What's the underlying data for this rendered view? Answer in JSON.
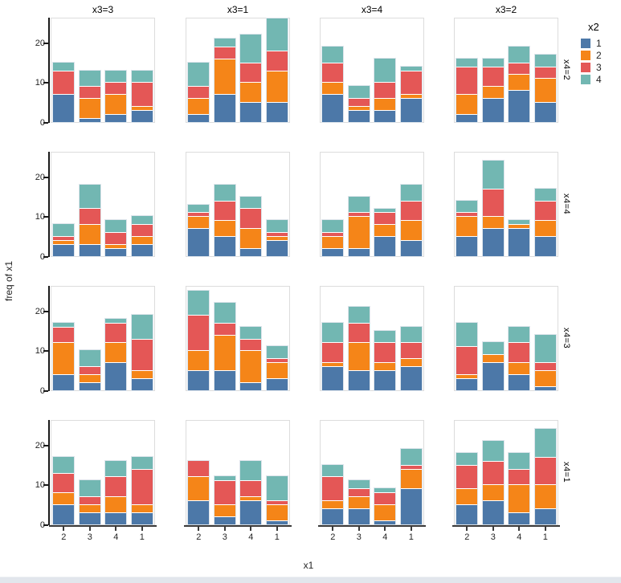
{
  "chart_data": {
    "type": "bar",
    "stacked": true,
    "xlabel": "x1",
    "ylabel": "freq of x1",
    "legend_title": "x2",
    "categories": [
      "2",
      "3",
      "4",
      "1"
    ],
    "series_names": [
      "1",
      "2",
      "3",
      "4"
    ],
    "series_colors": [
      "#4c78a8",
      "#f58518",
      "#e45756",
      "#72b7b2"
    ],
    "y_ticks": [
      0,
      10,
      20
    ],
    "ylim": [
      0,
      26.4
    ],
    "grid": false,
    "legend_position": "top-right",
    "facet_columns": [
      "x3=3",
      "x3=1",
      "x3=4",
      "x3=2"
    ],
    "facet_rows": [
      "x4=2",
      "x4=4",
      "x4=3",
      "x4=1"
    ],
    "note": "values[row][col][bar] = stacked segment heights for x2=1,2,3,4 (bar order x1 = 2,3,4,1)",
    "values": [
      [
        [
          [
            7,
            0,
            6,
            2
          ],
          [
            1,
            5,
            3,
            4
          ],
          [
            2,
            5,
            3,
            3
          ],
          [
            3,
            1,
            6,
            3
          ]
        ],
        [
          [
            2,
            4,
            3,
            6
          ],
          [
            7,
            9,
            3,
            2
          ],
          [
            5,
            5,
            5,
            7
          ],
          [
            5,
            8,
            5,
            8
          ]
        ],
        [
          [
            7,
            3,
            5,
            4
          ],
          [
            3,
            1,
            2,
            3
          ],
          [
            3,
            3,
            4,
            6
          ],
          [
            6,
            1,
            6,
            1
          ]
        ],
        [
          [
            2,
            5,
            7,
            2
          ],
          [
            6,
            3,
            5,
            2
          ],
          [
            8,
            4,
            3,
            4
          ],
          [
            5,
            6,
            3,
            3
          ]
        ]
      ],
      [
        [
          [
            3,
            1,
            1,
            3
          ],
          [
            3,
            5,
            4,
            6
          ],
          [
            2,
            1,
            3,
            3
          ],
          [
            3,
            2,
            3,
            2
          ]
        ],
        [
          [
            7,
            3,
            1,
            2
          ],
          [
            5,
            4,
            5,
            4
          ],
          [
            2,
            5,
            5,
            3
          ],
          [
            4,
            1,
            1,
            3
          ]
        ],
        [
          [
            2,
            3,
            1,
            3
          ],
          [
            2,
            8,
            1,
            4
          ],
          [
            5,
            3,
            3,
            1
          ],
          [
            4,
            5,
            5,
            4
          ]
        ],
        [
          [
            5,
            5,
            1,
            3
          ],
          [
            7,
            3,
            7,
            7
          ],
          [
            7,
            1,
            0,
            1
          ],
          [
            5,
            4,
            5,
            3
          ]
        ]
      ],
      [
        [
          [
            4,
            8,
            4,
            1
          ],
          [
            2,
            2,
            2,
            4
          ],
          [
            7,
            5,
            5,
            1
          ],
          [
            3,
            2,
            8,
            6
          ]
        ],
        [
          [
            5,
            5,
            9,
            6
          ],
          [
            5,
            9,
            3,
            5
          ],
          [
            2,
            8,
            3,
            3
          ],
          [
            3,
            4,
            1,
            3
          ]
        ],
        [
          [
            6,
            1,
            5,
            5
          ],
          [
            5,
            7,
            5,
            4
          ],
          [
            5,
            2,
            5,
            3
          ],
          [
            6,
            2,
            4,
            4
          ]
        ],
        [
          [
            3,
            1,
            7,
            6
          ],
          [
            7,
            2,
            0,
            3
          ],
          [
            4,
            3,
            5,
            4
          ],
          [
            1,
            4,
            2,
            7
          ]
        ]
      ],
      [
        [
          [
            5,
            3,
            5,
            4
          ],
          [
            3,
            2,
            2,
            4
          ],
          [
            3,
            4,
            5,
            4
          ],
          [
            3,
            2,
            9,
            3
          ]
        ],
        [
          [
            6,
            6,
            4,
            0
          ],
          [
            2,
            3,
            6,
            1
          ],
          [
            6,
            1,
            4,
            5
          ],
          [
            1,
            4,
            1,
            6
          ]
        ],
        [
          [
            4,
            2,
            6,
            3
          ],
          [
            4,
            3,
            2,
            2
          ],
          [
            1,
            4,
            3,
            1
          ],
          [
            9,
            5,
            1,
            4
          ]
        ],
        [
          [
            5,
            4,
            6,
            3
          ],
          [
            6,
            4,
            6,
            5
          ],
          [
            3,
            7,
            4,
            4
          ],
          [
            4,
            6,
            7,
            7
          ]
        ]
      ]
    ]
  }
}
